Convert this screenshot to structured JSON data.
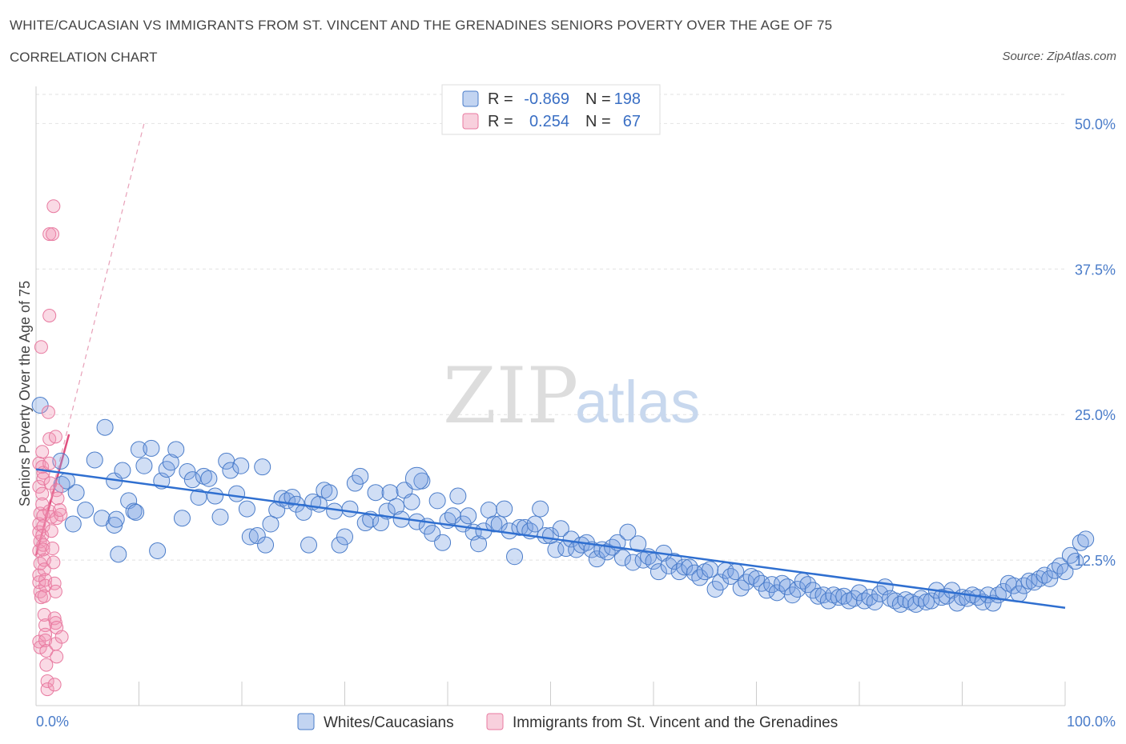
{
  "header": {
    "title": "WHITE/CAUCASIAN VS IMMIGRANTS FROM ST. VINCENT AND THE GRENADINES SENIORS POVERTY OVER THE AGE OF 75",
    "subtitle": "CORRELATION CHART",
    "source": "Source: ZipAtlas.com"
  },
  "watermark": {
    "zip": "ZIP",
    "atlas": "atlas"
  },
  "colors": {
    "blue": "#4a7cc9",
    "blue_fill": "rgba(120,160,225,0.35)",
    "blue_line": "#2f6fd0",
    "pink": "#e87aa0",
    "pink_fill": "rgba(240,150,180,0.35)",
    "pink_line": "#e0507f"
  },
  "stats_legend": {
    "rows": [
      {
        "r_label": "R =",
        "r_value": "-0.869",
        "n_label": "N =",
        "n_value": "198"
      },
      {
        "r_label": "R =",
        "r_value": "0.254",
        "n_label": "N =",
        "n_value": "67"
      }
    ]
  },
  "chart_data": {
    "type": "scatter",
    "title": "WHITE/CAUCASIAN VS IMMIGRANTS FROM ST. VINCENT AND THE GRENADINES SENIORS POVERTY OVER THE AGE OF 75",
    "xlabel": "",
    "ylabel": "Seniors Poverty Over the Age of 75",
    "xlim": [
      0,
      100
    ],
    "ylim": [
      0,
      52.5
    ],
    "x_tick_labels": [
      "0.0%",
      "100.0%"
    ],
    "y_ticks": [
      12.5,
      25.0,
      37.5,
      50.0
    ],
    "y_tick_labels": [
      "12.5%",
      "25.0%",
      "37.5%",
      "50.0%"
    ],
    "grid": true,
    "legend_position": "bottom",
    "series": [
      {
        "name": "Whites/Caucasians",
        "color": "#4a7cc9",
        "trend": {
          "x": [
            0,
            100
          ],
          "y": [
            20.3,
            8.4
          ]
        },
        "points": [
          [
            0.4,
            25.8
          ],
          [
            2.4,
            21.0
          ],
          [
            2.5,
            19.0
          ],
          [
            3.0,
            19.3
          ],
          [
            3.6,
            15.6
          ],
          [
            3.9,
            18.3
          ],
          [
            4.8,
            16.8
          ],
          [
            5.7,
            21.1
          ],
          [
            6.4,
            16.1
          ],
          [
            6.7,
            23.9
          ],
          [
            7.6,
            19.3
          ],
          [
            7.6,
            15.5
          ],
          [
            7.8,
            16.0
          ],
          [
            8.0,
            13.0
          ],
          [
            8.4,
            20.2
          ],
          [
            9.0,
            17.6
          ],
          [
            9.5,
            16.7
          ],
          [
            9.7,
            16.6
          ],
          [
            10.0,
            22.0
          ],
          [
            10.5,
            20.6
          ],
          [
            11.2,
            22.1
          ],
          [
            11.8,
            13.3
          ],
          [
            12.2,
            19.3
          ],
          [
            12.7,
            20.3
          ],
          [
            13.1,
            20.9
          ],
          [
            13.6,
            22.0
          ],
          [
            14.2,
            16.1
          ],
          [
            14.7,
            20.1
          ],
          [
            15.2,
            19.4
          ],
          [
            15.8,
            17.9
          ],
          [
            16.3,
            19.7
          ],
          [
            16.8,
            19.5
          ],
          [
            17.4,
            18.0
          ],
          [
            17.9,
            16.2
          ],
          [
            18.5,
            21.0
          ],
          [
            18.9,
            20.2
          ],
          [
            19.5,
            18.2
          ],
          [
            19.9,
            20.6
          ],
          [
            20.5,
            16.9
          ],
          [
            20.8,
            14.5
          ],
          [
            21.5,
            14.6
          ],
          [
            22.0,
            20.5
          ],
          [
            22.3,
            13.8
          ],
          [
            22.8,
            15.6
          ],
          [
            23.4,
            16.8
          ],
          [
            23.9,
            17.8
          ],
          [
            24.4,
            17.6
          ],
          [
            24.9,
            17.9
          ],
          [
            25.3,
            17.3
          ],
          [
            26.0,
            16.6
          ],
          [
            26.5,
            13.8
          ],
          [
            26.9,
            17.5
          ],
          [
            27.5,
            17.3
          ],
          [
            28.0,
            18.5
          ],
          [
            28.5,
            18.3
          ],
          [
            29.0,
            16.7
          ],
          [
            29.5,
            13.8
          ],
          [
            30.0,
            14.5
          ],
          [
            30.5,
            16.9
          ],
          [
            31.0,
            19.1
          ],
          [
            31.5,
            19.7
          ],
          [
            32.0,
            15.7
          ],
          [
            32.5,
            16.0
          ],
          [
            33.0,
            18.3
          ],
          [
            33.5,
            15.7
          ],
          [
            34.1,
            16.7
          ],
          [
            34.4,
            18.3
          ],
          [
            35.0,
            17.1
          ],
          [
            35.5,
            16.0
          ],
          [
            35.8,
            18.5
          ],
          [
            36.5,
            17.5
          ],
          [
            37.0,
            15.8
          ],
          [
            37.5,
            19.3
          ],
          [
            38.0,
            15.4
          ],
          [
            38.5,
            14.8
          ],
          [
            39.0,
            17.6
          ],
          [
            39.5,
            14.0
          ],
          [
            40.0,
            15.9
          ],
          [
            40.5,
            16.3
          ],
          [
            41.0,
            18.0
          ],
          [
            41.5,
            15.6
          ],
          [
            42.0,
            16.3
          ],
          [
            42.5,
            14.9
          ],
          [
            43.0,
            13.9
          ],
          [
            43.5,
            15.0
          ],
          [
            44.0,
            16.8
          ],
          [
            44.5,
            15.6
          ],
          [
            45.0,
            15.6
          ],
          [
            45.5,
            16.9
          ],
          [
            46.0,
            15.0
          ],
          [
            46.5,
            12.8
          ],
          [
            47.0,
            15.3
          ],
          [
            47.5,
            15.3
          ],
          [
            48.0,
            15.0
          ],
          [
            48.5,
            15.6
          ],
          [
            49.0,
            16.9
          ],
          [
            49.5,
            14.6
          ],
          [
            50.0,
            14.6
          ],
          [
            50.5,
            13.4
          ],
          [
            51.0,
            15.2
          ],
          [
            51.5,
            13.5
          ],
          [
            52.0,
            14.3
          ],
          [
            52.5,
            13.4
          ],
          [
            53.0,
            13.8
          ],
          [
            53.5,
            14.0
          ],
          [
            54.0,
            13.4
          ],
          [
            54.5,
            12.6
          ],
          [
            55.0,
            13.4
          ],
          [
            55.5,
            13.2
          ],
          [
            56.0,
            13.6
          ],
          [
            56.5,
            14.0
          ],
          [
            57.0,
            12.7
          ],
          [
            57.5,
            14.9
          ],
          [
            58.0,
            12.3
          ],
          [
            58.5,
            13.9
          ],
          [
            59.0,
            12.5
          ],
          [
            59.5,
            12.8
          ],
          [
            60.0,
            12.4
          ],
          [
            60.5,
            11.5
          ],
          [
            61.0,
            13.1
          ],
          [
            61.5,
            12.0
          ],
          [
            62.0,
            12.4
          ],
          [
            62.5,
            11.5
          ],
          [
            63.0,
            11.9
          ],
          [
            63.5,
            11.9
          ],
          [
            64.0,
            11.4
          ],
          [
            64.5,
            11.0
          ],
          [
            65.0,
            11.5
          ],
          [
            65.5,
            11.7
          ],
          [
            66.0,
            10.0
          ],
          [
            66.5,
            10.6
          ],
          [
            67.0,
            11.6
          ],
          [
            67.5,
            11.1
          ],
          [
            68.0,
            11.5
          ],
          [
            68.5,
            10.1
          ],
          [
            69.0,
            10.6
          ],
          [
            69.5,
            11.1
          ],
          [
            70.0,
            10.9
          ],
          [
            70.5,
            10.5
          ],
          [
            71.0,
            9.9
          ],
          [
            71.5,
            10.4
          ],
          [
            72.0,
            9.7
          ],
          [
            72.5,
            10.5
          ],
          [
            73.0,
            10.2
          ],
          [
            73.5,
            9.5
          ],
          [
            74.0,
            10.0
          ],
          [
            74.5,
            10.7
          ],
          [
            75.0,
            10.4
          ],
          [
            75.5,
            9.9
          ],
          [
            76.0,
            9.4
          ],
          [
            76.5,
            9.5
          ],
          [
            77.0,
            9.0
          ],
          [
            77.5,
            9.5
          ],
          [
            78.0,
            9.3
          ],
          [
            78.5,
            9.4
          ],
          [
            79.0,
            9.0
          ],
          [
            79.5,
            9.2
          ],
          [
            80.0,
            9.7
          ],
          [
            80.5,
            9.0
          ],
          [
            81.0,
            9.3
          ],
          [
            81.5,
            8.9
          ],
          [
            82.0,
            9.6
          ],
          [
            82.5,
            10.2
          ],
          [
            83.0,
            9.2
          ],
          [
            83.5,
            9.0
          ],
          [
            84.0,
            8.7
          ],
          [
            84.5,
            9.1
          ],
          [
            85.0,
            8.9
          ],
          [
            85.5,
            8.7
          ],
          [
            86.0,
            9.2
          ],
          [
            86.5,
            8.9
          ],
          [
            87.0,
            9.0
          ],
          [
            87.5,
            9.9
          ],
          [
            88.0,
            9.3
          ],
          [
            88.5,
            9.4
          ],
          [
            89.0,
            9.9
          ],
          [
            89.5,
            8.8
          ],
          [
            90.0,
            9.3
          ],
          [
            90.5,
            9.2
          ],
          [
            91.0,
            9.5
          ],
          [
            91.5,
            9.3
          ],
          [
            92.0,
            8.9
          ],
          [
            92.5,
            9.5
          ],
          [
            93.0,
            8.8
          ],
          [
            93.5,
            9.5
          ],
          [
            94.0,
            9.8
          ],
          [
            94.5,
            10.5
          ],
          [
            95.0,
            10.3
          ],
          [
            95.5,
            9.6
          ],
          [
            96.0,
            10.3
          ],
          [
            96.5,
            10.7
          ],
          [
            97.0,
            10.6
          ],
          [
            97.5,
            10.9
          ],
          [
            98.0,
            11.2
          ],
          [
            98.5,
            10.9
          ],
          [
            99.0,
            11.6
          ],
          [
            99.5,
            12.0
          ],
          [
            100.0,
            11.5
          ],
          [
            100.5,
            12.9
          ],
          [
            101.0,
            12.4
          ],
          [
            101.5,
            14.0
          ],
          [
            102.0,
            14.3
          ],
          [
            37.0,
            19.5
          ]
        ]
      },
      {
        "name": "Immigrants from St. Vincent and the Grenadines",
        "color": "#e87aa0",
        "trend": {
          "x": [
            0,
            3.2
          ],
          "y": [
            12.9,
            23.3
          ]
        },
        "trend_ext": {
          "x": [
            0,
            10.5
          ],
          "y": [
            12.9,
            50.0
          ]
        },
        "points": [
          [
            0.3,
            20.8
          ],
          [
            0.3,
            18.8
          ],
          [
            0.4,
            16.5
          ],
          [
            0.3,
            15.6
          ],
          [
            0.3,
            14.9
          ],
          [
            0.4,
            14.1
          ],
          [
            0.3,
            13.3
          ],
          [
            0.4,
            12.2
          ],
          [
            0.3,
            11.2
          ],
          [
            0.3,
            10.6
          ],
          [
            0.4,
            9.8
          ],
          [
            0.5,
            9.3
          ],
          [
            0.3,
            5.5
          ],
          [
            0.4,
            5.0
          ],
          [
            0.5,
            30.8
          ],
          [
            0.6,
            21.8
          ],
          [
            0.6,
            20.5
          ],
          [
            0.7,
            20.0
          ],
          [
            0.7,
            19.5
          ],
          [
            0.6,
            18.2
          ],
          [
            0.6,
            17.3
          ],
          [
            0.7,
            16.3
          ],
          [
            0.7,
            15.4
          ],
          [
            0.6,
            14.6
          ],
          [
            0.7,
            13.8
          ],
          [
            0.7,
            13.4
          ],
          [
            0.8,
            12.5
          ],
          [
            0.8,
            11.7
          ],
          [
            0.9,
            10.8
          ],
          [
            0.9,
            10.3
          ],
          [
            0.8,
            9.4
          ],
          [
            0.8,
            7.8
          ],
          [
            0.9,
            6.9
          ],
          [
            0.9,
            6.1
          ],
          [
            0.9,
            5.6
          ],
          [
            1.0,
            4.7
          ],
          [
            1.0,
            3.5
          ],
          [
            1.1,
            2.1
          ],
          [
            1.1,
            1.4
          ],
          [
            1.3,
            40.5
          ],
          [
            1.2,
            25.2
          ],
          [
            1.3,
            22.9
          ],
          [
            1.3,
            20.8
          ],
          [
            1.4,
            19.1
          ],
          [
            1.3,
            16.7
          ],
          [
            1.5,
            16.2
          ],
          [
            1.5,
            15.0
          ],
          [
            1.6,
            13.5
          ],
          [
            1.7,
            12.3
          ],
          [
            1.8,
            10.5
          ],
          [
            1.9,
            9.8
          ],
          [
            1.8,
            7.5
          ],
          [
            1.9,
            7.1
          ],
          [
            2.0,
            6.7
          ],
          [
            1.9,
            5.3
          ],
          [
            2.0,
            4.2
          ],
          [
            1.3,
            33.5
          ],
          [
            1.6,
            40.5
          ],
          [
            1.7,
            42.9
          ],
          [
            1.9,
            23.1
          ],
          [
            2.0,
            18.5
          ],
          [
            2.1,
            17.8
          ],
          [
            2.0,
            16.1
          ],
          [
            2.4,
            16.4
          ],
          [
            2.3,
            16.8
          ],
          [
            2.5,
            5.9
          ],
          [
            1.8,
            1.8
          ]
        ]
      }
    ]
  },
  "bottom_legend": {
    "items": [
      "Whites/Caucasians",
      "Immigrants from St. Vincent and the Grenadines"
    ]
  }
}
